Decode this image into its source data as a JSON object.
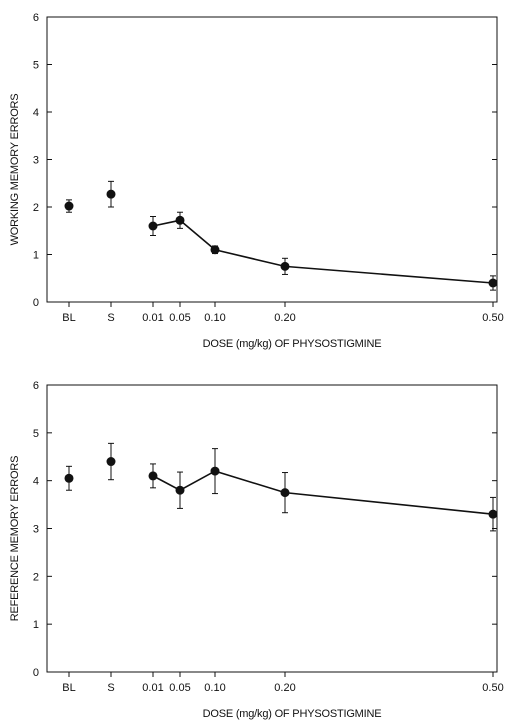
{
  "colors": {
    "ink": "#111111",
    "background": "#ffffff"
  },
  "chart_data": [
    {
      "type": "line",
      "xlabel": "DOSE (mg/kg) OF PHYSOSTIGMINE",
      "ylabel": "WORKING MEMORY ERRORS",
      "ylim": [
        0,
        6
      ],
      "yticks": [
        "0",
        "1",
        "2",
        "3",
        "4",
        "5",
        "6"
      ],
      "grid": false,
      "points": [
        {
          "label": "BL",
          "y": 2.02,
          "err": 0.13,
          "connected": false
        },
        {
          "label": "S",
          "y": 2.27,
          "err": 0.27,
          "connected": false
        },
        {
          "label": "0.01",
          "y": 1.6,
          "err": 0.2,
          "connected": true
        },
        {
          "label": "0.05",
          "y": 1.72,
          "err": 0.17,
          "connected": true
        },
        {
          "label": "0.10",
          "y": 1.1,
          "err": 0.08,
          "connected": true
        },
        {
          "label": "0.20",
          "y": 0.75,
          "err": 0.17,
          "connected": true
        },
        {
          "label": "0.50",
          "y": 0.4,
          "err": 0.15,
          "connected": true
        }
      ]
    },
    {
      "type": "line",
      "xlabel": "DOSE (mg/kg) OF PHYSOSTIGMINE",
      "ylabel": "REFERENCE MEMORY ERRORS",
      "ylim": [
        0,
        6
      ],
      "yticks": [
        "0",
        "1",
        "2",
        "3",
        "4",
        "5",
        "6"
      ],
      "grid": false,
      "points": [
        {
          "label": "BL",
          "y": 4.05,
          "err": 0.25,
          "connected": false
        },
        {
          "label": "S",
          "y": 4.4,
          "err": 0.38,
          "connected": false
        },
        {
          "label": "0.01",
          "y": 4.1,
          "err": 0.25,
          "connected": true
        },
        {
          "label": "0.05",
          "y": 3.8,
          "err": 0.38,
          "connected": true
        },
        {
          "label": "0.10",
          "y": 4.2,
          "err": 0.47,
          "connected": true
        },
        {
          "label": "0.20",
          "y": 3.75,
          "err": 0.42,
          "connected": true
        },
        {
          "label": "0.50",
          "y": 3.3,
          "err": 0.35,
          "connected": true
        }
      ]
    }
  ]
}
